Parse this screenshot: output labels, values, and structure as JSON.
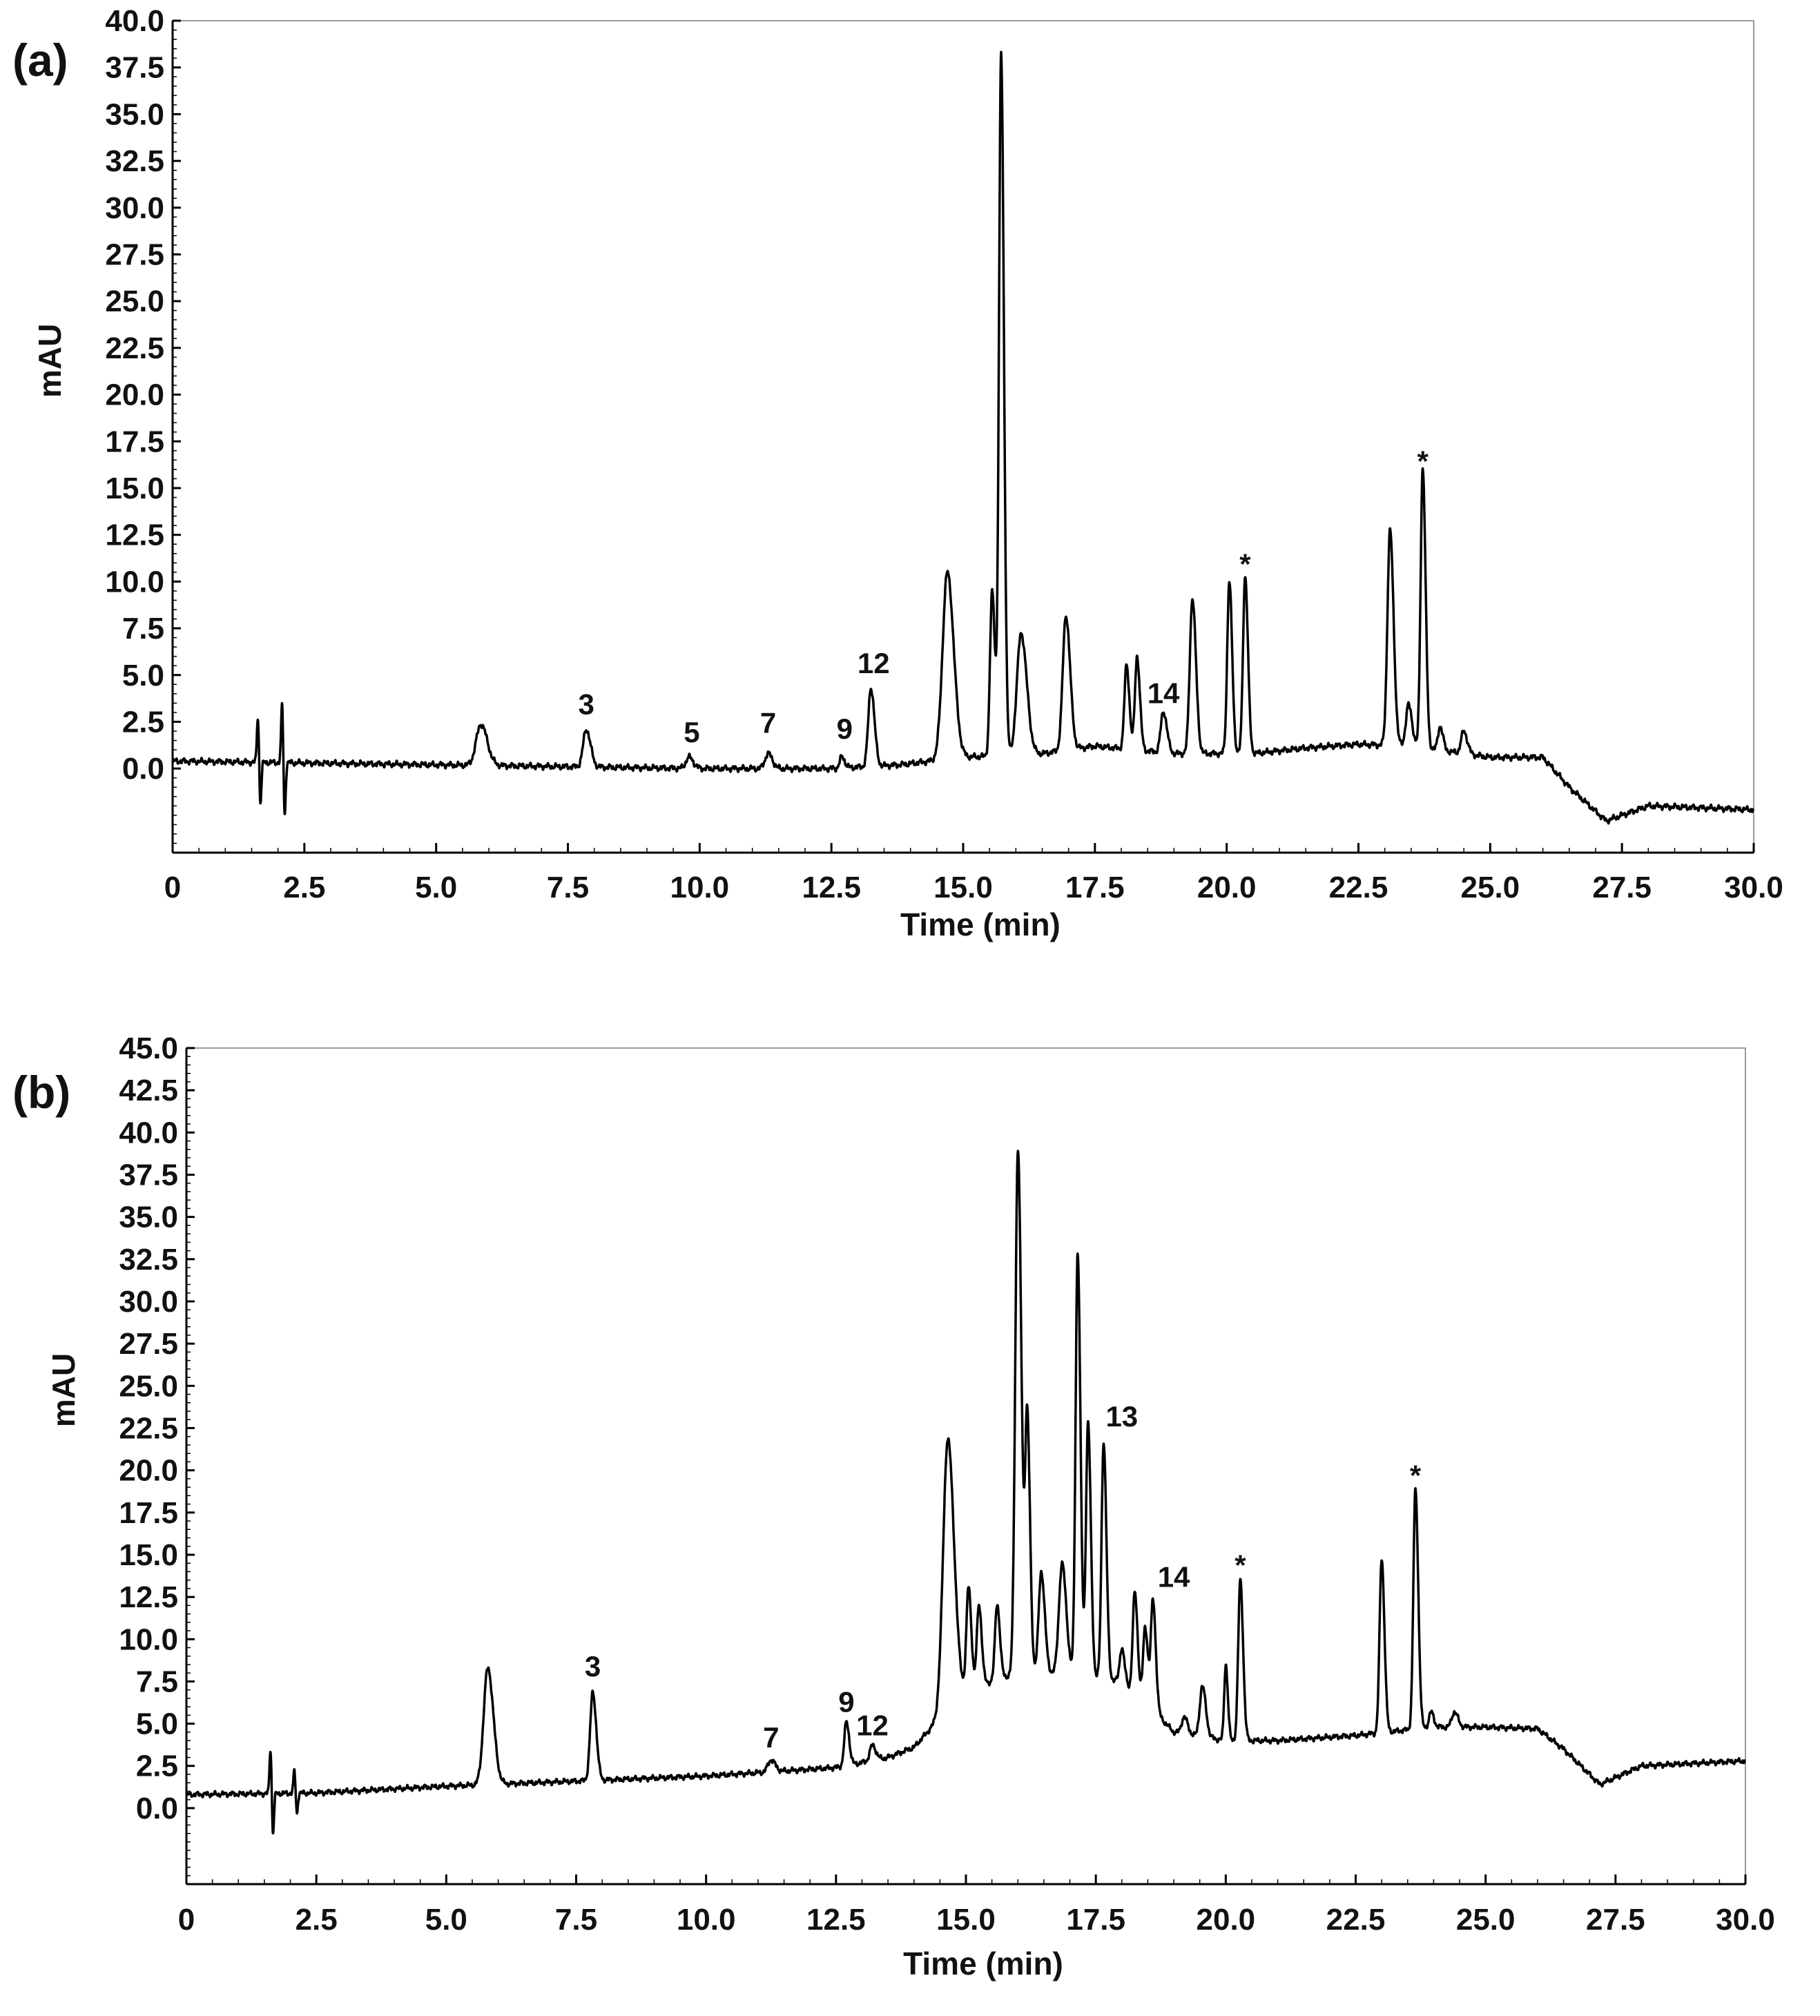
{
  "chart_data": [
    {
      "type": "line",
      "panel_label": "(a)",
      "xlabel": "Time (min)",
      "ylabel": "mAU",
      "xlim": [
        0,
        30
      ],
      "ylim": [
        -4.5,
        40
      ],
      "x_tick_labels": [
        "0",
        "2.5",
        "5.0",
        "7.5",
        "10.0",
        "12.5",
        "15.0",
        "17.5",
        "20.0",
        "22.5",
        "25.0",
        "27.5",
        "30.0"
      ],
      "y_tick_labels": [
        "40.0",
        "37.5",
        "35.0",
        "32.5",
        "30.0",
        "27.5",
        "25.0",
        "22.5",
        "20.0",
        "17.5",
        "15.0",
        "12.5",
        "10.0",
        "7.5",
        "5.0",
        "2.5",
        "0.0"
      ],
      "grid": false,
      "baseline": [
        [
          0,
          0.4
        ],
        [
          2.5,
          0.3
        ],
        [
          5.0,
          0.2
        ],
        [
          7.5,
          0.1
        ],
        [
          10.0,
          0.0
        ],
        [
          12.5,
          0.0
        ],
        [
          13.8,
          0.2
        ],
        [
          15.0,
          0.6
        ],
        [
          16.5,
          0.8
        ],
        [
          17.5,
          1.2
        ],
        [
          19.0,
          0.8
        ],
        [
          20.5,
          0.8
        ],
        [
          21.5,
          1.1
        ],
        [
          22.5,
          1.3
        ],
        [
          23.5,
          1.2
        ],
        [
          25.0,
          0.6
        ],
        [
          26.0,
          0.6
        ],
        [
          26.5,
          -1.0
        ],
        [
          27.2,
          -2.8
        ],
        [
          28.0,
          -2.0
        ],
        [
          30.0,
          -2.2
        ]
      ],
      "peaks": [
        {
          "rt": 1.62,
          "height": 2.6,
          "width": 0.02,
          "kind": "spike"
        },
        {
          "rt": 2.08,
          "height": 3.3,
          "width": 0.02,
          "kind": "spike"
        },
        {
          "rt": 5.85,
          "height": 2.2,
          "width": 0.09
        },
        {
          "rt": 7.85,
          "height": 2.0,
          "width": 0.06
        },
        {
          "rt": 9.8,
          "height": 0.6,
          "width": 0.06
        },
        {
          "rt": 11.3,
          "height": 0.8,
          "width": 0.06
        },
        {
          "rt": 12.7,
          "height": 0.6,
          "width": 0.04
        },
        {
          "rt": 13.25,
          "height": 4.2,
          "width": 0.05
        },
        {
          "rt": 14.7,
          "height": 10.0,
          "width": 0.09
        },
        {
          "rt": 15.55,
          "height": 8.8,
          "width": 0.04
        },
        {
          "rt": 15.72,
          "height": 37.5,
          "width": 0.04
        },
        {
          "rt": 16.1,
          "height": 6.5,
          "width": 0.08
        },
        {
          "rt": 16.95,
          "height": 7.2,
          "width": 0.06
        },
        {
          "rt": 18.1,
          "height": 4.5,
          "width": 0.04
        },
        {
          "rt": 18.3,
          "height": 5.0,
          "width": 0.04
        },
        {
          "rt": 18.8,
          "height": 2.2,
          "width": 0.05
        },
        {
          "rt": 19.35,
          "height": 8.3,
          "width": 0.05
        },
        {
          "rt": 20.05,
          "height": 9.2,
          "width": 0.04
        },
        {
          "rt": 20.35,
          "height": 9.5,
          "width": 0.04
        },
        {
          "rt": 23.1,
          "height": 11.5,
          "width": 0.05
        },
        {
          "rt": 23.45,
          "height": 2.2,
          "width": 0.05
        },
        {
          "rt": 23.72,
          "height": 15.0,
          "width": 0.04
        },
        {
          "rt": 24.05,
          "height": 1.3,
          "width": 0.04
        },
        {
          "rt": 24.5,
          "height": 1.2,
          "width": 0.05
        }
      ],
      "annotations": [
        {
          "text": "3",
          "x": 7.85,
          "y": 2.9
        },
        {
          "text": "5",
          "x": 9.85,
          "y": 1.4
        },
        {
          "text": "7",
          "x": 11.3,
          "y": 1.9
        },
        {
          "text": "9",
          "x": 12.75,
          "y": 1.6
        },
        {
          "text": "12",
          "x": 13.3,
          "y": 5.1
        },
        {
          "text": "14",
          "x": 18.8,
          "y": 3.5
        },
        {
          "text": "*",
          "x": 20.35,
          "y": 10.4
        },
        {
          "text": "*",
          "x": 23.72,
          "y": 15.9
        }
      ]
    },
    {
      "type": "line",
      "panel_label": "(b)",
      "xlabel": "Time (min)",
      "ylabel": "mAU",
      "xlim": [
        0,
        30
      ],
      "ylim": [
        -4.5,
        45
      ],
      "x_tick_labels": [
        "0",
        "2.5",
        "5.0",
        "7.5",
        "10.0",
        "12.5",
        "15.0",
        "17.5",
        "20.0",
        "22.5",
        "25.0",
        "27.5",
        "30.0"
      ],
      "y_tick_labels": [
        "45.0",
        "42.5",
        "40.0",
        "37.5",
        "35.0",
        "32.5",
        "30.0",
        "27.5",
        "25.0",
        "22.5",
        "20.0",
        "17.5",
        "15.0",
        "12.5",
        "10.0",
        "7.5",
        "5.0",
        "2.5",
        "0.0"
      ],
      "grid": false,
      "baseline": [
        [
          0,
          0.8
        ],
        [
          2.5,
          0.9
        ],
        [
          5.0,
          1.3
        ],
        [
          7.5,
          1.6
        ],
        [
          10.0,
          1.9
        ],
        [
          12.5,
          2.4
        ],
        [
          13.5,
          3.0
        ],
        [
          14.0,
          3.6
        ],
        [
          14.4,
          5.0
        ],
        [
          15.0,
          7.0
        ],
        [
          16.0,
          8.0
        ],
        [
          17.0,
          8.0
        ],
        [
          18.0,
          7.5
        ],
        [
          18.7,
          5.5
        ],
        [
          19.0,
          4.5
        ],
        [
          20.0,
          4.0
        ],
        [
          21.0,
          4.0
        ],
        [
          22.5,
          4.3
        ],
        [
          24.0,
          4.8
        ],
        [
          25.0,
          4.8
        ],
        [
          26.0,
          4.7
        ],
        [
          26.5,
          3.5
        ],
        [
          27.2,
          1.4
        ],
        [
          28.0,
          2.5
        ],
        [
          30.0,
          2.8
        ]
      ],
      "peaks": [
        {
          "rt": 1.62,
          "height": 2.8,
          "width": 0.02,
          "kind": "spike"
        },
        {
          "rt": 2.08,
          "height": 1.4,
          "width": 0.02,
          "kind": "spike"
        },
        {
          "rt": 5.8,
          "height": 6.9,
          "width": 0.08
        },
        {
          "rt": 7.82,
          "height": 5.2,
          "width": 0.05
        },
        {
          "rt": 11.25,
          "height": 0.7,
          "width": 0.06
        },
        {
          "rt": 12.7,
          "height": 2.6,
          "width": 0.04
        },
        {
          "rt": 13.2,
          "height": 0.9,
          "width": 0.05
        },
        {
          "rt": 14.65,
          "height": 16.0,
          "width": 0.09
        },
        {
          "rt": 15.05,
          "height": 6.0,
          "width": 0.04
        },
        {
          "rt": 15.25,
          "height": 4.8,
          "width": 0.04
        },
        {
          "rt": 15.6,
          "height": 4.5,
          "width": 0.04
        },
        {
          "rt": 16.0,
          "height": 31.0,
          "width": 0.05
        },
        {
          "rt": 16.18,
          "height": 15.0,
          "width": 0.04
        },
        {
          "rt": 16.45,
          "height": 6.0,
          "width": 0.05
        },
        {
          "rt": 16.85,
          "height": 6.5,
          "width": 0.06
        },
        {
          "rt": 17.15,
          "height": 25.0,
          "width": 0.04
        },
        {
          "rt": 17.35,
          "height": 15.0,
          "width": 0.04
        },
        {
          "rt": 17.65,
          "height": 14.0,
          "width": 0.04
        },
        {
          "rt": 18.0,
          "height": 2.0,
          "width": 0.04
        },
        {
          "rt": 18.25,
          "height": 6.0,
          "width": 0.04
        },
        {
          "rt": 18.45,
          "height": 4.5,
          "width": 0.04
        },
        {
          "rt": 18.6,
          "height": 6.5,
          "width": 0.04
        },
        {
          "rt": 19.2,
          "height": 1.0,
          "width": 0.05
        },
        {
          "rt": 19.55,
          "height": 3.0,
          "width": 0.05
        },
        {
          "rt": 20.0,
          "height": 4.5,
          "width": 0.03
        },
        {
          "rt": 20.28,
          "height": 9.5,
          "width": 0.04
        },
        {
          "rt": 23.0,
          "height": 10.3,
          "width": 0.04
        },
        {
          "rt": 23.65,
          "height": 14.2,
          "width": 0.04
        },
        {
          "rt": 23.95,
          "height": 0.9,
          "width": 0.04
        },
        {
          "rt": 24.4,
          "height": 0.9,
          "width": 0.05
        }
      ],
      "annotations": [
        {
          "text": "3",
          "x": 7.82,
          "y": 7.8
        },
        {
          "text": "7",
          "x": 11.25,
          "y": 3.6
        },
        {
          "text": "9",
          "x": 12.7,
          "y": 5.7
        },
        {
          "text": "12",
          "x": 13.2,
          "y": 4.3
        },
        {
          "text": "13",
          "x": 18.0,
          "y": 22.6
        },
        {
          "text": "14",
          "x": 19.0,
          "y": 13.1
        },
        {
          "text": "*",
          "x": 20.28,
          "y": 13.8
        },
        {
          "text": "*",
          "x": 23.65,
          "y": 19.1
        }
      ]
    }
  ]
}
